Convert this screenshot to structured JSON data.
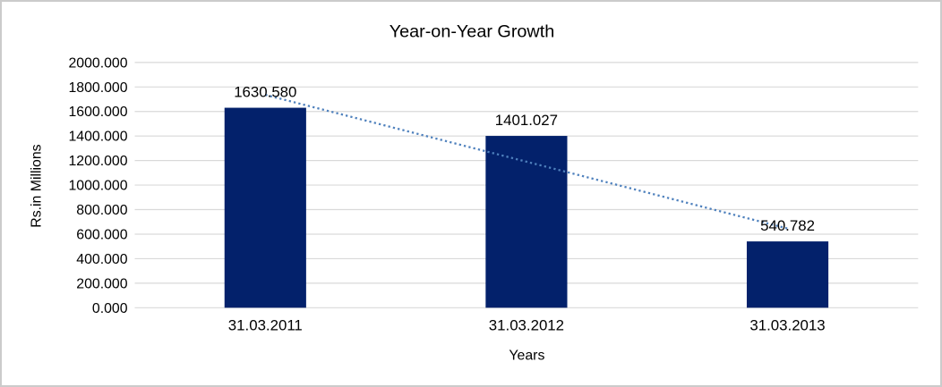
{
  "chart_data": {
    "type": "bar",
    "title": "Year-on-Year Growth",
    "xlabel": "Years",
    "ylabel": "Rs.in Millions",
    "categories": [
      "31.03.2011",
      "31.03.2012",
      "31.03.2013"
    ],
    "series": [
      {
        "name": "Rs.in Millions",
        "values": [
          1630.58,
          1401.027,
          540.782
        ],
        "value_labels": [
          "1630.580",
          "1401.027",
          "540.782"
        ]
      }
    ],
    "ylim": [
      0,
      2000
    ],
    "y_tick_step": 200,
    "y_tick_labels": [
      "0.000",
      "200.000",
      "400.000",
      "600.000",
      "800.000",
      "1000.000",
      "1200.000",
      "1400.000",
      "1600.000",
      "1800.000",
      "2000.000"
    ],
    "grid": true,
    "legend_position": "none",
    "trendline": {
      "type": "linear",
      "style": "dotted",
      "color": "#4F81BD"
    },
    "colors": {
      "bar": "#03216B",
      "gridline": "#D9D9D9",
      "text": "#000000",
      "frame_border": "#CBCBCB",
      "background": "#FFFFFF"
    }
  }
}
